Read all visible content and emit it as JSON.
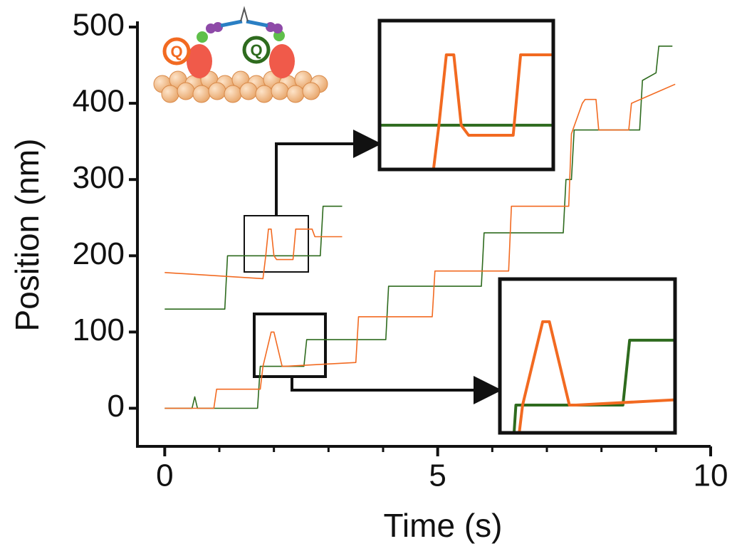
{
  "chart_data": {
    "type": "line",
    "xlabel": "Time (s)",
    "ylabel": "Position (nm)",
    "annotations": [
      "Q",
      "Q"
    ],
    "xlim": [
      -0.5,
      10
    ],
    "ylim": [
      -50,
      500
    ],
    "xticks": [
      0,
      5,
      10
    ],
    "xminorticks": [
      1,
      2,
      3,
      4,
      6,
      7,
      8,
      9
    ],
    "yticks": [
      0,
      100,
      200,
      300,
      400,
      500
    ],
    "series": [
      {
        "color": "#2e6b1e",
        "x": [
          0,
          1.1,
          1.15,
          2.85,
          2.9,
          3.25
        ],
        "values": [
          130,
          130,
          200,
          200,
          265,
          265
        ]
      },
      {
        "color": "#f26a21",
        "x": [
          0,
          1.8,
          1.85,
          1.9,
          1.95,
          2.0,
          2.05,
          2.35,
          2.4,
          2.7,
          2.75,
          3.25
        ],
        "values": [
          178,
          170,
          200,
          235,
          235,
          200,
          195,
          195,
          235,
          235,
          225,
          225
        ]
      },
      {
        "color": "#2e6b1e",
        "x": [
          0,
          0.5,
          0.55,
          0.6,
          1.7,
          1.75,
          2.55,
          2.6,
          4.05,
          4.1,
          5.8,
          5.85,
          7.3,
          7.35,
          7.45,
          7.5,
          8.7,
          8.75,
          9.0,
          9.05,
          9.3
        ],
        "values": [
          0,
          0,
          15,
          0,
          0,
          55,
          55,
          90,
          90,
          160,
          160,
          230,
          230,
          300,
          300,
          365,
          365,
          430,
          440,
          475,
          475
        ]
      },
      {
        "color": "#f26a21",
        "x": [
          0,
          0.9,
          0.95,
          1.75,
          1.8,
          1.95,
          2.0,
          2.15,
          2.2,
          3.5,
          3.55,
          4.9,
          4.95,
          6.3,
          6.35,
          7.4,
          7.45,
          7.65,
          7.7,
          7.9,
          7.95,
          8.5,
          8.55,
          9.35
        ],
        "values": [
          0,
          0,
          25,
          25,
          55,
          100,
          100,
          55,
          55,
          60,
          120,
          120,
          180,
          180,
          265,
          265,
          360,
          400,
          405,
          405,
          365,
          365,
          400,
          425
        ]
      }
    ]
  }
}
